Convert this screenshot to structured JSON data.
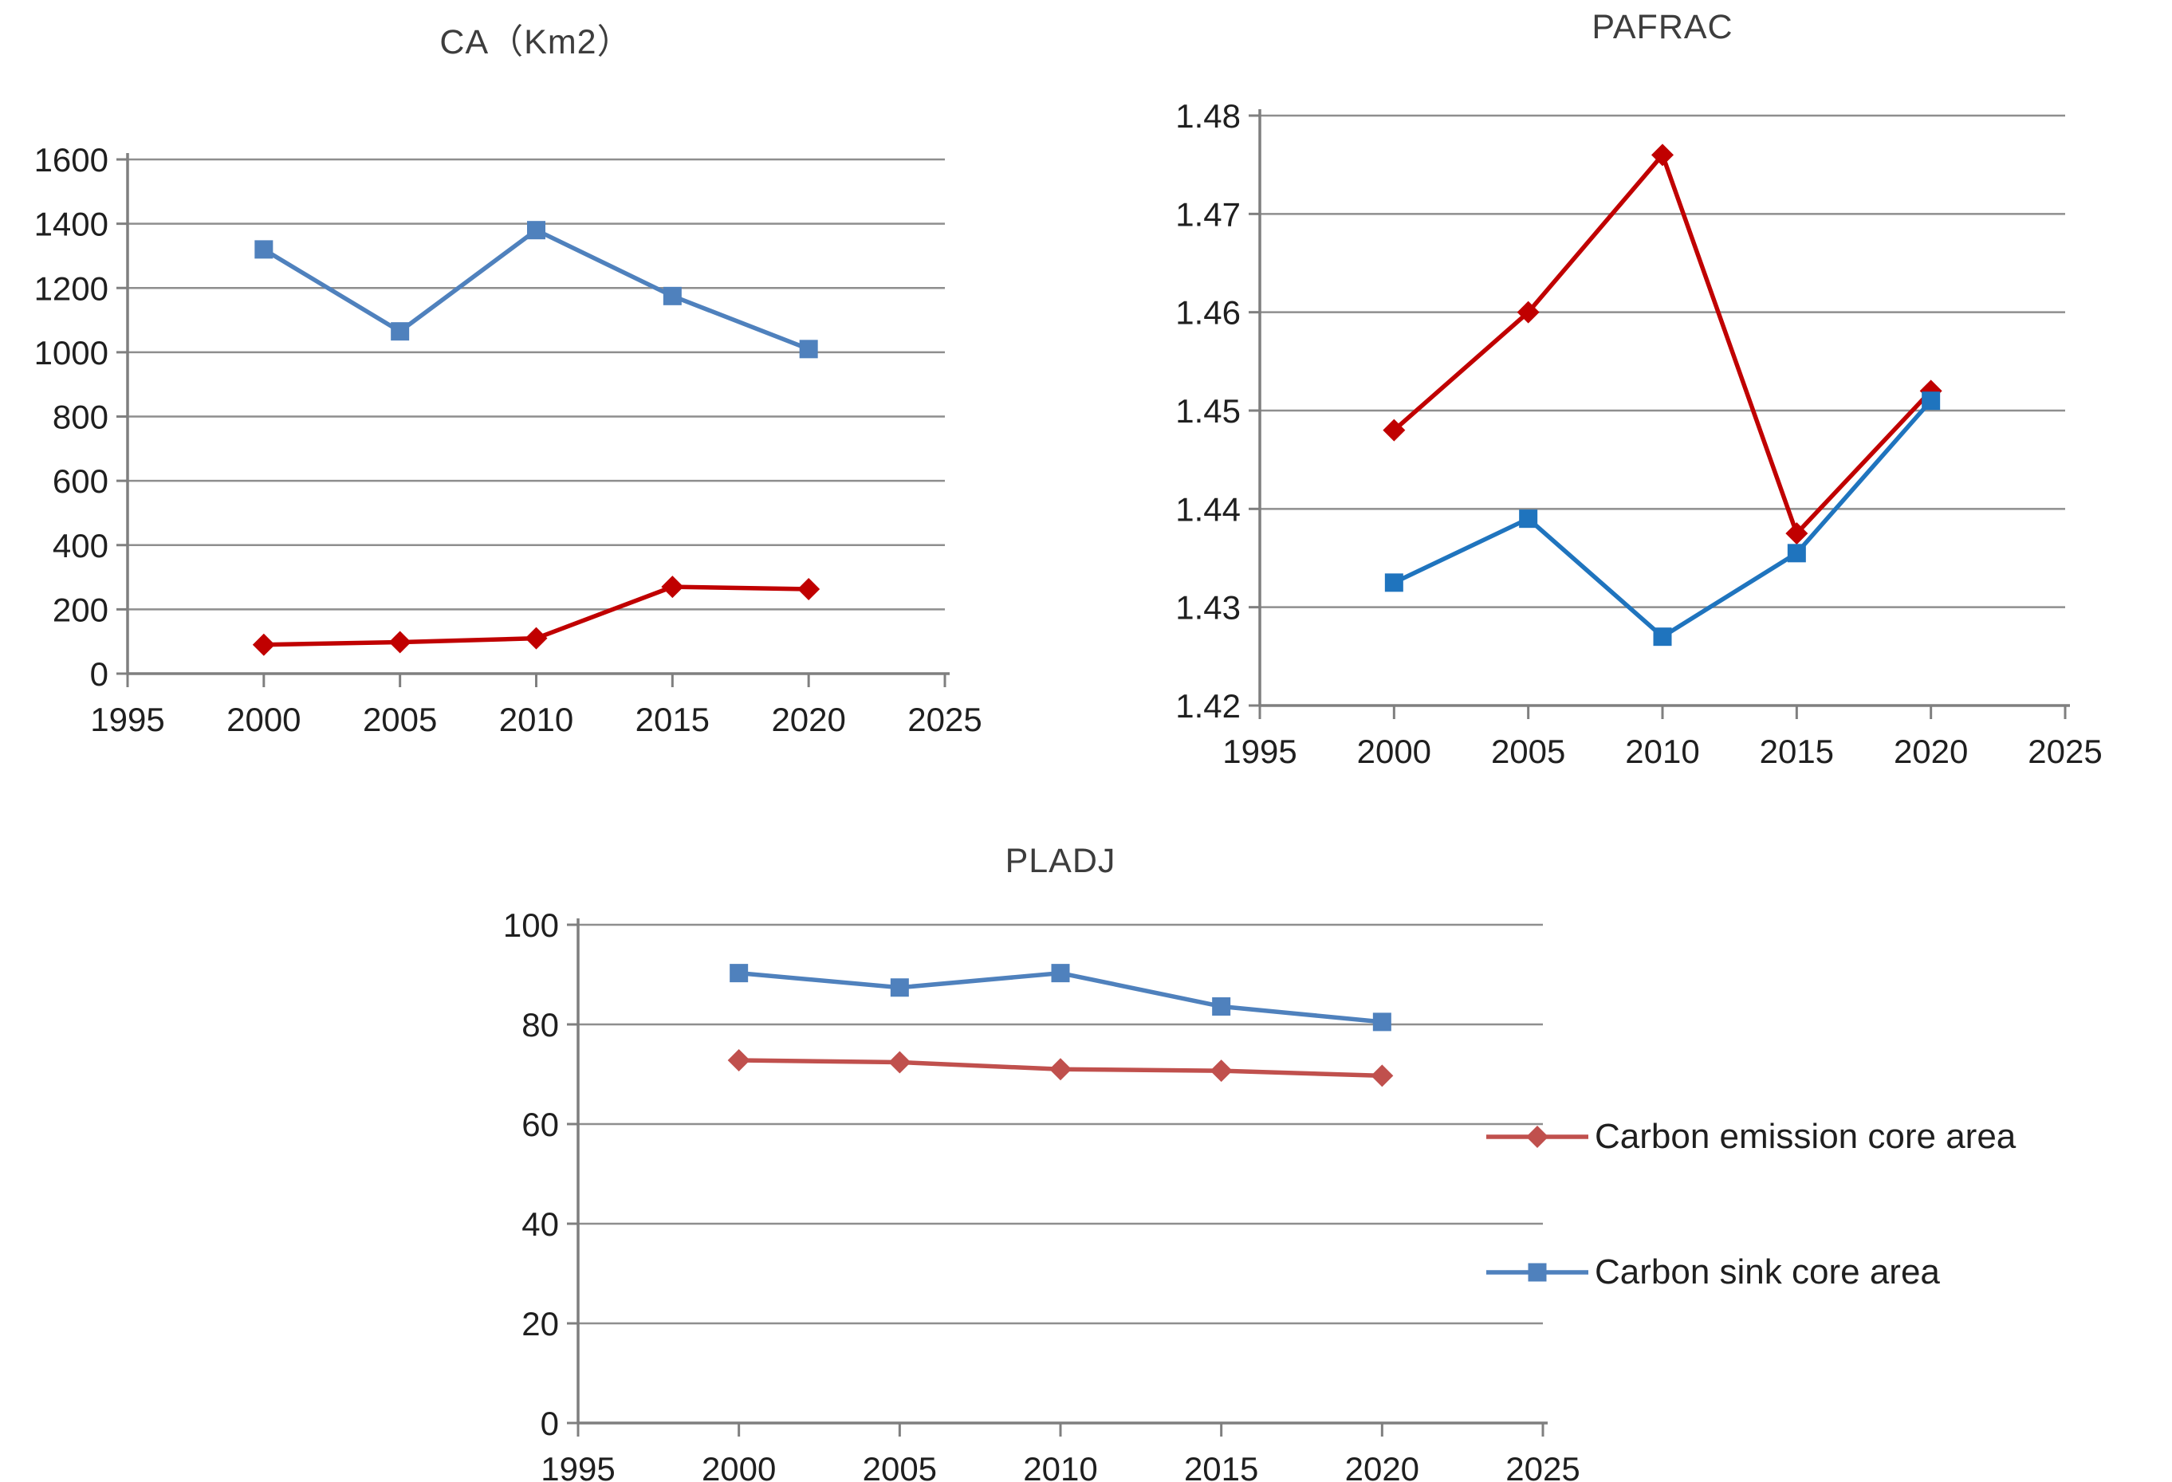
{
  "figure": {
    "background": "#ffffff",
    "style": {
      "grid_color": "#8e8e8e",
      "axis_color": "#7f7f7f",
      "tick_text_color": "#1f1f1f",
      "title_text_color": "#3d3d3d",
      "emission_red_dark": "#C00000",
      "emission_red_muted": "#C0504D",
      "sink_blue_muted": "#4F81BD",
      "sink_blue_bright": "#1F74BE"
    }
  },
  "legend": {
    "position": "right-bottom",
    "items": [
      {
        "label": "Carbon emission core area",
        "color": "#C0504D",
        "marker": "diamond"
      },
      {
        "label": "Carbon sink core area",
        "color": "#4F81BD",
        "marker": "square"
      }
    ]
  },
  "chart_data": [
    {
      "type": "line",
      "title": "CA（Km2）",
      "x": [
        2000,
        2005,
        2010,
        2015,
        2020
      ],
      "xlim": [
        1995,
        2025
      ],
      "xticks": [
        1995,
        2000,
        2005,
        2010,
        2015,
        2020,
        2025
      ],
      "xtick_labels": [
        "1995",
        "2000",
        "2005",
        "2010",
        "2015",
        "2020",
        "2025"
      ],
      "ylim": [
        0,
        1600
      ],
      "yticks": [
        0,
        200,
        400,
        600,
        800,
        1000,
        1200,
        1400,
        1600
      ],
      "ytick_labels": [
        "0",
        "200",
        "400",
        "600",
        "800",
        "1000",
        "1200",
        "1400",
        "1600"
      ],
      "grid": true,
      "legend_position": "none",
      "series": [
        {
          "name": "Carbon emission core area",
          "color": "#C00000",
          "marker": "diamond",
          "values": [
            90,
            98,
            110,
            270,
            263
          ]
        },
        {
          "name": "Carbon sink core area",
          "color": "#4F81BD",
          "marker": "square",
          "values": [
            1320,
            1065,
            1380,
            1175,
            1010
          ]
        }
      ]
    },
    {
      "type": "line",
      "title": "PAFRAC",
      "x": [
        2000,
        2005,
        2010,
        2015,
        2020
      ],
      "xlim": [
        1995,
        2025
      ],
      "xticks": [
        1995,
        2000,
        2005,
        2010,
        2015,
        2020,
        2025
      ],
      "xtick_labels": [
        "1995",
        "2000",
        "2005",
        "2010",
        "2015",
        "2020",
        "2025"
      ],
      "ylim": [
        1.42,
        1.48
      ],
      "yticks": [
        1.42,
        1.43,
        1.44,
        1.45,
        1.46,
        1.47,
        1.48
      ],
      "ytick_labels": [
        "1.42",
        "1.43",
        "1.44",
        "1.45",
        "1.46",
        "1.47",
        "1.48"
      ],
      "grid": true,
      "legend_position": "none",
      "series": [
        {
          "name": "Carbon emission core area",
          "color": "#C00000",
          "marker": "diamond",
          "values": [
            1.448,
            1.46,
            1.476,
            1.4375,
            1.452
          ]
        },
        {
          "name": "Carbon sink core area",
          "color": "#1F74BE",
          "marker": "square",
          "values": [
            1.4325,
            1.439,
            1.427,
            1.4355,
            1.451
          ]
        }
      ]
    },
    {
      "type": "line",
      "title": "PLADJ",
      "x": [
        2000,
        2005,
        2010,
        2015,
        2020
      ],
      "xlim": [
        1995,
        2025
      ],
      "xticks": [
        1995,
        2000,
        2005,
        2010,
        2015,
        2020,
        2025
      ],
      "xtick_labels": [
        "1995",
        "2000",
        "2005",
        "2010",
        "2015",
        "2020",
        "2025"
      ],
      "ylim": [
        0,
        100
      ],
      "yticks": [
        0,
        20,
        40,
        60,
        80,
        100
      ],
      "ytick_labels": [
        "0",
        "20",
        "40",
        "60",
        "80",
        "100"
      ],
      "grid": true,
      "legend_position": "right",
      "series": [
        {
          "name": "Carbon emission core area",
          "color": "#C0504D",
          "marker": "diamond",
          "values": [
            72.8,
            72.4,
            71.0,
            70.7,
            69.7
          ]
        },
        {
          "name": "Carbon sink core area",
          "color": "#4F81BD",
          "marker": "square",
          "values": [
            90.3,
            87.4,
            90.3,
            83.6,
            80.5
          ]
        }
      ]
    }
  ]
}
